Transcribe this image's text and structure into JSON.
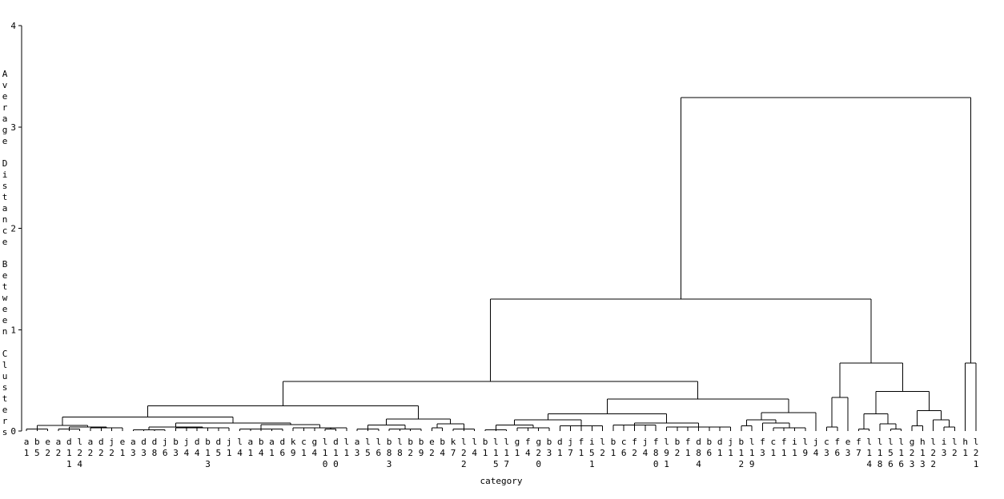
{
  "chart_data": {
    "type": "dendrogram",
    "y_label": "Average Distance Between Clusters",
    "x_label": "category",
    "ylim": [
      0,
      4
    ],
    "yticks": [
      0,
      1,
      2,
      3,
      4
    ],
    "color": "#000000",
    "tree": {
      "height": 3.29,
      "children": [
        {
          "height": 1.3,
          "children": [
            {
              "height": 0.49,
              "children": [
                {
                  "height": 0.25,
                  "children": [
                    {
                      "height": 0.14,
                      "children": [
                        {
                          "height": 0.055,
                          "children": [
                            {
                              "height": 0.02,
                              "children": [
                                "a1",
                                "b5",
                                "e2"
                              ]
                            },
                            {
                              "height": 0.04,
                              "children": [
                                {
                                  "height": 0.02,
                                  "children": [
                                    "a2",
                                    "d11",
                                    "l24"
                                  ]
                                },
                                {
                                  "height": 0.03,
                                  "children": [
                                    "a2",
                                    "d2",
                                    "j2",
                                    "e1"
                                  ]
                                }
                              ]
                            }
                          ]
                        },
                        {
                          "height": 0.08,
                          "children": [
                            {
                              "height": 0.04,
                              "children": [
                                {
                                  "height": 0.01,
                                  "children": [
                                    "a3",
                                    "d3",
                                    "d8",
                                    "j6"
                                  ]
                                },
                                {
                                  "height": 0.03,
                                  "children": [
                                    "b3",
                                    "j4",
                                    "d4",
                                    "b13",
                                    "d5",
                                    "j1"
                                  ]
                                }
                              ]
                            },
                            {
                              "height": 0.065,
                              "children": [
                                {
                                  "height": 0.02,
                                  "children": [
                                    "l4",
                                    "a1",
                                    "b4",
                                    "a1",
                                    "d6"
                                  ]
                                },
                                {
                                  "height": 0.03,
                                  "children": [
                                    "k9",
                                    "c1",
                                    "g4",
                                    {
                                      "height": 0.02,
                                      "children": [
                                        "l10",
                                        "d10"
                                      ]
                                    },
                                    "l1"
                                  ]
                                }
                              ]
                            }
                          ]
                        }
                      ]
                    },
                    {
                      "height": 0.12,
                      "children": [
                        {
                          "height": 0.06,
                          "children": [
                            {
                              "height": 0.02,
                              "children": [
                                "a3",
                                "l5",
                                "l6"
                              ]
                            },
                            {
                              "height": 0.02,
                              "children": [
                                "b83",
                                "l8",
                                "b2",
                                "b9"
                              ]
                            }
                          ]
                        },
                        {
                          "height": 0.07,
                          "children": [
                            {
                              "height": 0.03,
                              "children": [
                                "e2",
                                "b4"
                              ]
                            },
                            {
                              "height": 0.02,
                              "children": [
                                "k7",
                                "l22",
                                "l4"
                              ]
                            }
                          ]
                        }
                      ]
                    }
                  ]
                },
                {
                  "height": 0.315,
                  "children": [
                    {
                      "height": 0.17,
                      "children": [
                        {
                          "height": 0.11,
                          "children": [
                            {
                              "height": 0.06,
                              "children": [
                                {
                                  "height": 0.01,
                                  "children": [
                                    "b1",
                                    "l15",
                                    "l17"
                                  ]
                                },
                                {
                                  "height": 0.03,
                                  "children": [
                                    "g1",
                                    "f4",
                                    "g20",
                                    "b3"
                                  ]
                                }
                              ]
                            },
                            {
                              "height": 0.05,
                              "children": [
                                "d1",
                                "j7",
                                "f1",
                                "i51",
                                "l2"
                              ]
                            }
                          ]
                        },
                        {
                          "height": 0.08,
                          "children": [
                            {
                              "height": 0.06,
                              "children": [
                                "b1",
                                "c6",
                                "f2",
                                "j4",
                                "f80"
                              ]
                            },
                            {
                              "height": 0.04,
                              "children": [
                                "l91",
                                "b2",
                                "f1",
                                "d84",
                                "b6",
                                "d1",
                                "j1"
                              ]
                            }
                          ]
                        }
                      ]
                    },
                    {
                      "height": 0.18,
                      "children": [
                        {
                          "height": 0.11,
                          "children": [
                            {
                              "height": 0.05,
                              "children": [
                                "b12",
                                "l19"
                              ]
                            },
                            {
                              "height": 0.08,
                              "children": [
                                "f3",
                                {
                                  "height": 0.03,
                                  "children": [
                                    "c1",
                                    "f1",
                                    "i1",
                                    "l9"
                                  ]
                                }
                              ]
                            }
                          ]
                        },
                        "j4"
                      ]
                    }
                  ]
                }
              ]
            },
            {
              "height": 0.67,
              "children": [
                {
                  "height": 0.33,
                  "children": [
                    {
                      "height": 0.04,
                      "children": [
                        "c3",
                        "f6"
                      ]
                    },
                    "e3"
                  ]
                },
                {
                  "height": 0.39,
                  "children": [
                    {
                      "height": 0.17,
                      "children": [
                        {
                          "height": 0.02,
                          "children": [
                            "f7",
                            "l14"
                          ]
                        },
                        {
                          "height": 0.07,
                          "children": [
                            "l18",
                            {
                              "height": 0.02,
                              "children": [
                                "l56",
                                "l16"
                              ]
                            }
                          ]
                        }
                      ]
                    },
                    {
                      "height": 0.2,
                      "children": [
                        {
                          "height": 0.05,
                          "children": [
                            "g23",
                            "h13"
                          ]
                        },
                        {
                          "height": 0.11,
                          "children": [
                            "l22",
                            {
                              "height": 0.04,
                              "children": [
                                "i3",
                                "l2"
                              ]
                            }
                          ]
                        }
                      ]
                    }
                  ]
                }
              ]
            }
          ]
        },
        {
          "height": 0.67,
          "children": [
            "h1",
            "l21"
          ]
        }
      ]
    }
  }
}
